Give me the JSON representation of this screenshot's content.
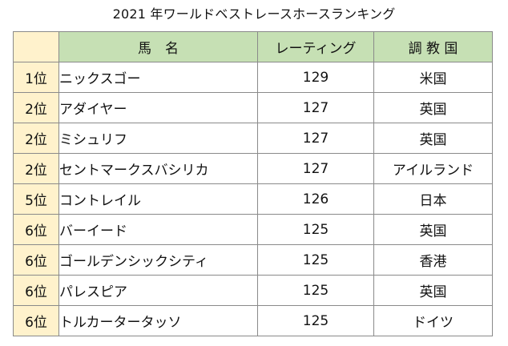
{
  "title": "2021 年ワールドベストレースホースランキング",
  "table": {
    "headers": {
      "rank": "",
      "name": "馬　名",
      "rating": "レーティング",
      "country": "調 教 国"
    },
    "rows": [
      {
        "rank": "1位",
        "name": "ニックスゴー",
        "rating": "129",
        "country": "米国"
      },
      {
        "rank": "2位",
        "name": "アダイヤー",
        "rating": "127",
        "country": "英国"
      },
      {
        "rank": "2位",
        "name": "ミシュリフ",
        "rating": "127",
        "country": "英国"
      },
      {
        "rank": "2位",
        "name": "セントマークスバシリカ",
        "rating": "127",
        "country": "アイルランド"
      },
      {
        "rank": "5位",
        "name": "コントレイル",
        "rating": "126",
        "country": "日本"
      },
      {
        "rank": "6位",
        "name": "バーイード",
        "rating": "125",
        "country": "英国"
      },
      {
        "rank": "6位",
        "name": "ゴールデンシックシティ",
        "rating": "125",
        "country": "香港"
      },
      {
        "rank": "6位",
        "name": "パレスピア",
        "rating": "125",
        "country": "英国"
      },
      {
        "rank": "6位",
        "name": "トルカータータッソ",
        "rating": "125",
        "country": "ドイツ"
      }
    ]
  },
  "colors": {
    "header_fill": "#c6e0b4",
    "rank_fill": "#fff2cc",
    "border": "#8a8a8a"
  }
}
